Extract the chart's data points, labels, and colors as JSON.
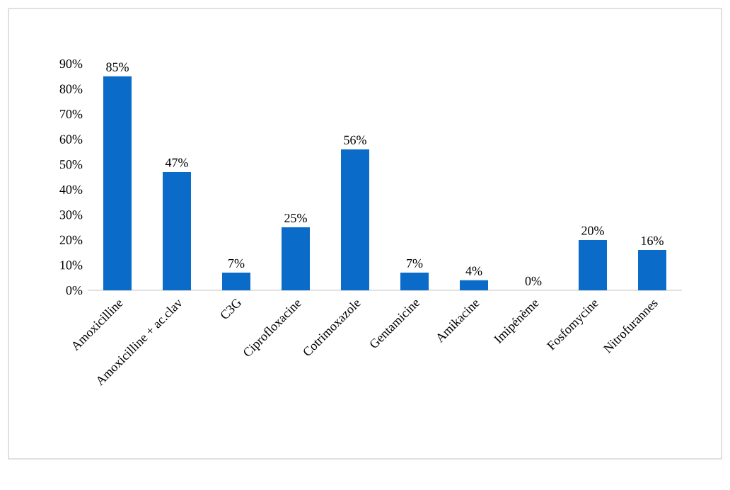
{
  "chart_data": {
    "type": "bar",
    "categories": [
      "Amoxicilline",
      "Amoxicilline + ac.clav",
      "C3G",
      "Ciprofloxacine",
      "Cotrimoxazole",
      "Gentamicine",
      "Amikacine",
      "Imipénème",
      "Fosfomycine",
      "Nitrofurannes"
    ],
    "values": [
      85,
      47,
      7,
      25,
      56,
      7,
      4,
      0,
      20,
      16
    ],
    "value_labels": [
      "85%",
      "47%",
      "7%",
      "25%",
      "56%",
      "7%",
      "4%",
      "0%",
      "20%",
      "16%"
    ],
    "color": "#0a6cc8",
    "ylim": [
      0,
      90
    ],
    "yticks": [
      {
        "value": 0,
        "label": "0%"
      },
      {
        "value": 10,
        "label": "10%"
      },
      {
        "value": 20,
        "label": "20%"
      },
      {
        "value": 30,
        "label": "30%"
      },
      {
        "value": 40,
        "label": "40%"
      },
      {
        "value": 50,
        "label": "50%"
      },
      {
        "value": 60,
        "label": "60%"
      },
      {
        "value": 70,
        "label": "70%"
      },
      {
        "value": 80,
        "label": "80%"
      },
      {
        "value": 90,
        "label": "90%"
      }
    ]
  }
}
